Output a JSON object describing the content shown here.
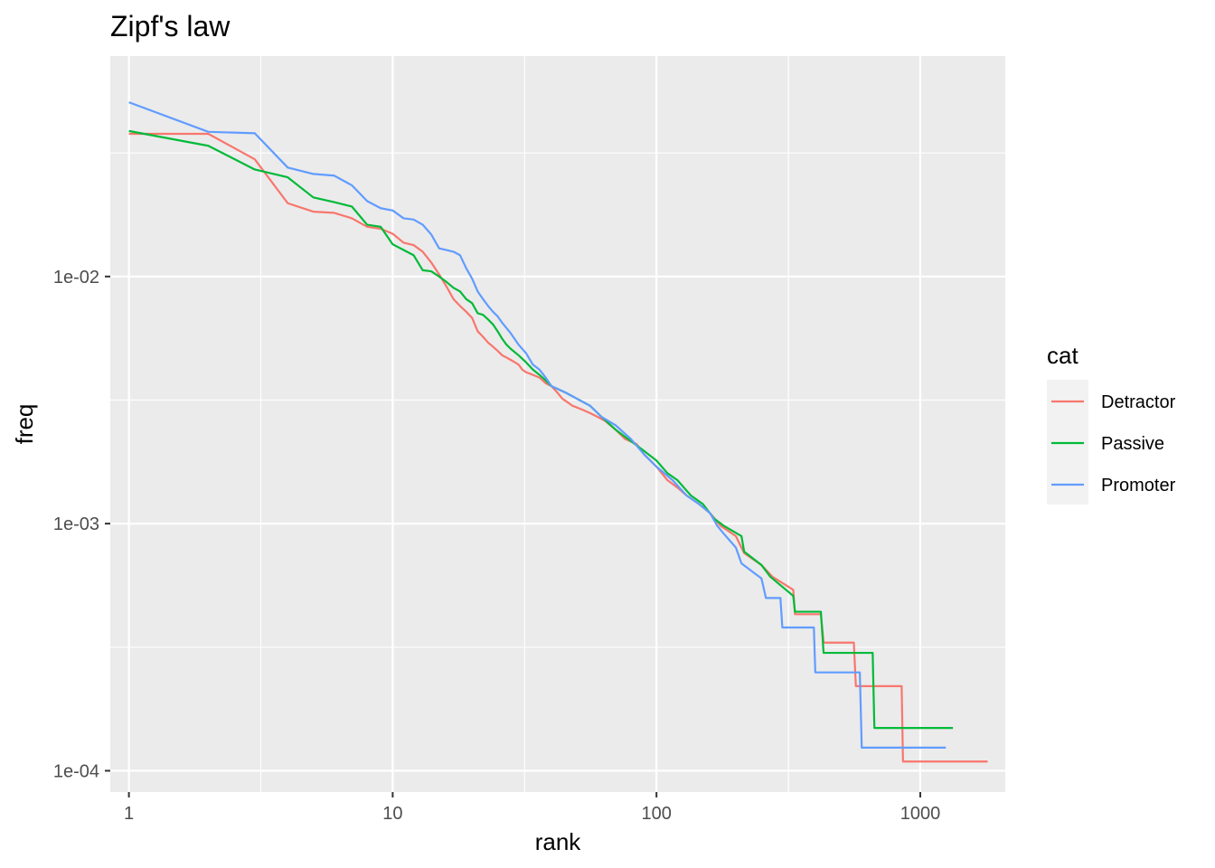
{
  "chart_data": {
    "type": "line",
    "title": "Zipf's law",
    "xlabel": "rank",
    "ylabel": "freq",
    "x_scale": "log10",
    "y_scale": "log10",
    "xlim": [
      0.85,
      2100
    ],
    "ylim": [
      8.2e-05,
      0.078
    ],
    "x_ticks": [
      {
        "value": 1,
        "label": "1"
      },
      {
        "value": 10,
        "label": "10"
      },
      {
        "value": 100,
        "label": "100"
      },
      {
        "value": 1000,
        "label": "1000"
      }
    ],
    "y_ticks": [
      {
        "value": 0.0001,
        "label": "1e-04"
      },
      {
        "value": 0.001,
        "label": "1e-03"
      },
      {
        "value": 0.01,
        "label": "1e-02"
      }
    ],
    "grid": true,
    "legend": {
      "title": "cat",
      "position": "right"
    },
    "series": [
      {
        "name": "Detractor",
        "color": "#F8766D",
        "points": [
          [
            1,
            0.0378
          ],
          [
            2,
            0.0378
          ],
          [
            3,
            0.0298
          ],
          [
            4,
            0.0198
          ],
          [
            5,
            0.0183
          ],
          [
            6,
            0.0181
          ],
          [
            7,
            0.0172
          ],
          [
            8,
            0.0159
          ],
          [
            9,
            0.0156
          ],
          [
            10,
            0.0149
          ],
          [
            11,
            0.0137
          ],
          [
            12,
            0.0134
          ],
          [
            13,
            0.0126
          ],
          [
            14,
            0.0114
          ],
          [
            15,
            0.0102
          ],
          [
            16,
            0.0091
          ],
          [
            17,
            0.0081
          ],
          [
            18,
            0.0076
          ],
          [
            19,
            0.0072
          ],
          [
            20,
            0.0068
          ],
          [
            21,
            0.006
          ],
          [
            22,
            0.0057
          ],
          [
            23,
            0.0054
          ],
          [
            24,
            0.0052
          ],
          [
            25,
            0.005
          ],
          [
            26,
            0.0048
          ],
          [
            27,
            0.0047
          ],
          [
            28,
            0.0046
          ],
          [
            29,
            0.0045
          ],
          [
            30,
            0.0044
          ],
          [
            31,
            0.0042
          ],
          [
            32,
            0.0041
          ],
          [
            34,
            0.004
          ],
          [
            36,
            0.0039
          ],
          [
            38,
            0.0037
          ],
          [
            40,
            0.0036
          ],
          [
            42,
            0.0034
          ],
          [
            44,
            0.0032
          ],
          [
            46,
            0.0031
          ],
          [
            48,
            0.003
          ],
          [
            52,
            0.0029
          ],
          [
            56,
            0.0028
          ],
          [
            60,
            0.0027
          ],
          [
            64,
            0.0026
          ],
          [
            70,
            0.0024
          ],
          [
            76,
            0.0022
          ],
          [
            84,
            0.0021
          ],
          [
            90,
            0.0019
          ],
          [
            100,
            0.0017
          ],
          [
            110,
            0.0015
          ],
          [
            120,
            0.0014
          ],
          [
            130,
            0.0013
          ],
          [
            145,
            0.0012
          ],
          [
            160,
            0.0011
          ],
          [
            175,
            0.00098
          ],
          [
            200,
            0.00089
          ],
          [
            215,
            0.00076
          ],
          [
            250,
            0.00068
          ],
          [
            275,
            0.00061
          ],
          [
            330,
            0.00054
          ],
          [
            335,
            0.00043
          ],
          [
            420,
            0.00043
          ],
          [
            430,
            0.00033
          ],
          [
            560,
            0.00033
          ],
          [
            570,
            0.00022
          ],
          [
            850,
            0.00022
          ],
          [
            860,
            0.000109
          ],
          [
            1800,
            0.000109
          ]
        ]
      },
      {
        "name": "Passive",
        "color": "#00BA38",
        "points": [
          [
            1,
            0.0388
          ],
          [
            2,
            0.0338
          ],
          [
            3,
            0.0271
          ],
          [
            4,
            0.0252
          ],
          [
            5,
            0.0209
          ],
          [
            6,
            0.02
          ],
          [
            7,
            0.0192
          ],
          [
            8,
            0.0162
          ],
          [
            9,
            0.0159
          ],
          [
            10,
            0.0135
          ],
          [
            11,
            0.0128
          ],
          [
            12,
            0.0122
          ],
          [
            13,
            0.0106
          ],
          [
            14,
            0.0105
          ],
          [
            15,
            0.01
          ],
          [
            16,
            0.0095
          ],
          [
            17,
            0.009
          ],
          [
            18,
            0.0087
          ],
          [
            19,
            0.0081
          ],
          [
            20,
            0.0078
          ],
          [
            21,
            0.0071
          ],
          [
            22,
            0.007
          ],
          [
            23,
            0.0067
          ],
          [
            24,
            0.0064
          ],
          [
            25,
            0.006
          ],
          [
            26,
            0.0056
          ],
          [
            27,
            0.0053
          ],
          [
            28,
            0.0051
          ],
          [
            30,
            0.0048
          ],
          [
            32,
            0.0045
          ],
          [
            34,
            0.0042
          ],
          [
            36,
            0.004
          ],
          [
            38,
            0.0038
          ],
          [
            40,
            0.0036
          ],
          [
            45,
            0.0034
          ],
          [
            50,
            0.0032
          ],
          [
            56,
            0.003
          ],
          [
            62,
            0.0027
          ],
          [
            70,
            0.0024
          ],
          [
            78,
            0.0022
          ],
          [
            88,
            0.002
          ],
          [
            100,
            0.0018
          ],
          [
            110,
            0.0016
          ],
          [
            120,
            0.0015
          ],
          [
            135,
            0.0013
          ],
          [
            150,
            0.0012
          ],
          [
            165,
            0.00105
          ],
          [
            180,
            0.00098
          ],
          [
            210,
            0.00089
          ],
          [
            215,
            0.00077
          ],
          [
            250,
            0.00068
          ],
          [
            270,
            0.00061
          ],
          [
            330,
            0.00051
          ],
          [
            335,
            0.00044
          ],
          [
            420,
            0.00044
          ],
          [
            430,
            0.0003
          ],
          [
            660,
            0.0003
          ],
          [
            670,
            0.000149
          ],
          [
            1330,
            0.000149
          ]
        ]
      },
      {
        "name": "Promoter",
        "color": "#619CFF",
        "points": [
          [
            1,
            0.0507
          ],
          [
            2,
            0.0385
          ],
          [
            3,
            0.038
          ],
          [
            4,
            0.0276
          ],
          [
            5,
            0.026
          ],
          [
            6,
            0.0256
          ],
          [
            7,
            0.0234
          ],
          [
            8,
            0.0202
          ],
          [
            9,
            0.0189
          ],
          [
            10,
            0.0185
          ],
          [
            11,
            0.0172
          ],
          [
            12,
            0.017
          ],
          [
            13,
            0.0162
          ],
          [
            14,
            0.0148
          ],
          [
            15,
            0.013
          ],
          [
            16,
            0.0128
          ],
          [
            17,
            0.0126
          ],
          [
            18,
            0.0122
          ],
          [
            19,
            0.0108
          ],
          [
            20,
            0.0098
          ],
          [
            21,
            0.0087
          ],
          [
            22,
            0.0081
          ],
          [
            23,
            0.0076
          ],
          [
            24,
            0.0072
          ],
          [
            25,
            0.0069
          ],
          [
            26,
            0.0065
          ],
          [
            28,
            0.0059
          ],
          [
            30,
            0.0053
          ],
          [
            32,
            0.0049
          ],
          [
            34,
            0.0044
          ],
          [
            36,
            0.0042
          ],
          [
            38,
            0.0039
          ],
          [
            40,
            0.0036
          ],
          [
            45,
            0.0034
          ],
          [
            50,
            0.0032
          ],
          [
            56,
            0.003
          ],
          [
            62,
            0.0027
          ],
          [
            70,
            0.0025
          ],
          [
            80,
            0.0022
          ],
          [
            90,
            0.0019
          ],
          [
            100,
            0.0017
          ],
          [
            115,
            0.0015
          ],
          [
            130,
            0.0013
          ],
          [
            145,
            0.0012
          ],
          [
            160,
            0.0011
          ],
          [
            170,
            0.00098
          ],
          [
            180,
            0.00091
          ],
          [
            200,
            0.0008
          ],
          [
            210,
            0.00069
          ],
          [
            250,
            0.0006
          ],
          [
            260,
            0.0005
          ],
          [
            295,
            0.0005
          ],
          [
            300,
            0.00038
          ],
          [
            395,
            0.00038
          ],
          [
            400,
            0.00025
          ],
          [
            590,
            0.00025
          ],
          [
            600,
            0.000124
          ],
          [
            1250,
            0.000124
          ]
        ]
      }
    ]
  }
}
